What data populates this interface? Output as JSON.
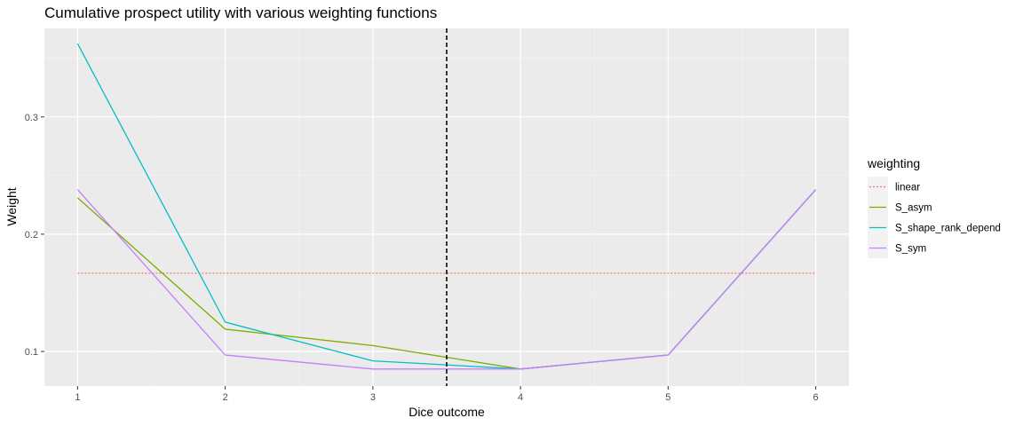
{
  "chart_data": {
    "type": "line",
    "title": "Cumulative prospect utility with various weighting functions",
    "xlabel": "Dice outcome",
    "ylabel": "Weight",
    "x": [
      1,
      2,
      3,
      4,
      5,
      6
    ],
    "xlim": [
      0.775,
      6.225
    ],
    "ylim": [
      0.0705,
      0.3755
    ],
    "x_ticks": [
      1,
      2,
      3,
      4,
      5,
      6
    ],
    "y_ticks": [
      0.1,
      0.2,
      0.3
    ],
    "y_tick_labels": [
      "0.1",
      "0.2",
      "0.3"
    ],
    "grid": true,
    "vline": {
      "x": 3.5,
      "style": "dashed",
      "color": "#000000"
    },
    "legend": {
      "title": "weighting",
      "position": "right"
    },
    "series": [
      {
        "name": "linear",
        "color": "#F8766D",
        "dash": "dotted",
        "values": [
          0.1667,
          0.1667,
          0.1667,
          0.1667,
          0.1667,
          0.1667
        ]
      },
      {
        "name": "S_asym",
        "color": "#7CAE00",
        "dash": "solid",
        "values": [
          0.231,
          0.119,
          0.105,
          0.085,
          0.097,
          0.238
        ]
      },
      {
        "name": "S_shape_rank_depend",
        "color": "#00BFC4",
        "dash": "solid",
        "values": [
          0.3625,
          0.125,
          0.092,
          0.085,
          0.097,
          0.238
        ]
      },
      {
        "name": "S_sym",
        "color": "#C77CFF",
        "dash": "solid",
        "values": [
          0.238,
          0.097,
          0.085,
          0.085,
          0.097,
          0.238
        ]
      }
    ],
    "colors": {
      "panel": "#EBEBEB",
      "grid_major": "#FFFFFF",
      "grid_minor": "#F5F5F5",
      "tick": "#333333"
    }
  }
}
